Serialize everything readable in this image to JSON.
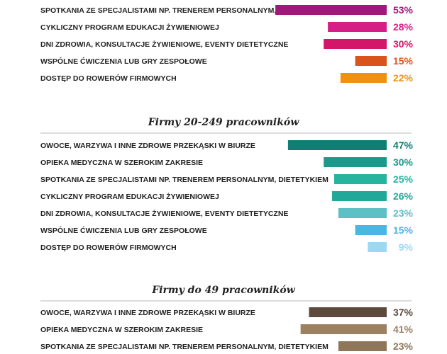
{
  "chart_data": [
    {
      "type": "bar",
      "title": "",
      "color": "#a3167a",
      "categories": [
        "SPOTKANIA ZE SPECJALISTAMI NP. TRENEREM PERSONALNYM, DIETETYKIEM",
        "CYKLICZNY PROGRAM EDUKACJI ŻYWIENIOWEJ",
        "DNI ZDROWIA, KONSULTACJE ŻYWIENIOWE, EVENTY DIETETYCZNE",
        "WSPÓLNE ĆWICZENIA LUB GRY ZESPOŁOWE",
        "DOSTĘP DO ROWERÓW FIRMOWYCH"
      ],
      "values": [
        53,
        28,
        30,
        15,
        22
      ],
      "value_labels": [
        "53%",
        "28%",
        "30%",
        "15%",
        "22%"
      ],
      "colors": [
        "#a3167a",
        "#d51f86",
        "#d4166a",
        "#d9541c",
        "#ee9310"
      ]
    },
    {
      "type": "bar",
      "title": "Firmy 20-249 pracowników",
      "color": "#0f7f73",
      "categories": [
        "OWOCE, WARZYWA I INNE ZDROWE PRZEKĄSKI W BIURZE",
        "OPIEKA MEDYCZNA W SZEROKIM ZAKRESIE",
        "SPOTKANIA ZE SPECJALISTAMI NP. TRENEREM PERSONALNYM, DIETETYKIEM",
        "CYKLICZNY PROGRAM EDUKACJI ŻYWIENIOWEJ",
        "DNI ZDROWIA, KONSULTACJE ŻYWIENIOWE, EVENTY DIETETYCZNE",
        "WSPÓLNE ĆWICZENIA LUB GRY ZESPOŁOWE",
        "DOSTĘP DO ROWERÓW FIRMOWYCH"
      ],
      "values": [
        47,
        30,
        25,
        26,
        23,
        15,
        9
      ],
      "value_labels": [
        "47%",
        "30%",
        "25%",
        "26%",
        "23%",
        "15%",
        "9%"
      ],
      "colors": [
        "#0f7f73",
        "#1a9a8a",
        "#27b49f",
        "#22a898",
        "#5cbfc4",
        "#4cb5e0",
        "#9bd8f4"
      ]
    },
    {
      "type": "bar",
      "title": "Firmy do 49 pracowników",
      "color": "#5d4a3d",
      "categories": [
        "OWOCE, WARZYWA I INNE ZDROWE PRZEKĄSKI W BIURZE",
        "OPIEKA MEDYCZNA W SZEROKIM ZAKRESIE",
        "SPOTKANIA ZE SPECJALISTAMI NP. TRENEREM PERSONALNYM, DIETETYKIEM"
      ],
      "values": [
        37,
        41,
        23
      ],
      "value_labels": [
        "37%",
        "41%",
        "23%"
      ],
      "colors": [
        "#5d4a3d",
        "#9c8160",
        "#8e7659"
      ]
    }
  ]
}
